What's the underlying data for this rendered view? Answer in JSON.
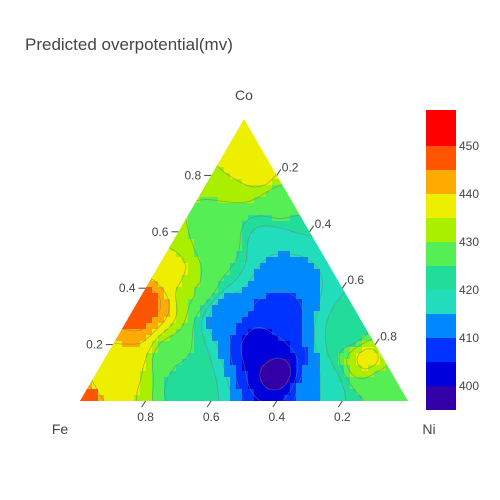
{
  "chart_data": {
    "type": "heatmap",
    "subtype": "ternary-contour",
    "title": "Predicted overpotential(mv)",
    "axes": {
      "top": "Co",
      "left": "Fe",
      "right": "Ni"
    },
    "ticks": {
      "co": [
        "0.2",
        "0.4",
        "0.6",
        "0.8"
      ],
      "ni": [
        "0.2",
        "0.4",
        "0.6",
        "0.8"
      ],
      "fe": [
        "0.2",
        "0.4",
        "0.6",
        "0.8"
      ]
    },
    "tick_values": [
      0.2,
      0.4,
      0.6,
      0.8
    ],
    "colorbar": {
      "tick_labels": [
        "400",
        "410",
        "420",
        "430",
        "440",
        "450"
      ],
      "tick_values": [
        400,
        410,
        420,
        430,
        440,
        450
      ],
      "range": [
        395,
        457.5
      ],
      "levels": [
        {
          "lo": 395,
          "hi": 400,
          "color": "#3300a8"
        },
        {
          "lo": 400,
          "hi": 405,
          "color": "#0000dd"
        },
        {
          "lo": 405,
          "hi": 410,
          "color": "#0033ff"
        },
        {
          "lo": 410,
          "hi": 415,
          "color": "#0088ff"
        },
        {
          "lo": 415,
          "hi": 420,
          "color": "#22ddbb"
        },
        {
          "lo": 420,
          "hi": 425,
          "color": "#22dd9a"
        },
        {
          "lo": 425,
          "hi": 430,
          "color": "#55ee55"
        },
        {
          "lo": 430,
          "hi": 435,
          "color": "#aaee00"
        },
        {
          "lo": 435,
          "hi": 440,
          "color": "#eeee00"
        },
        {
          "lo": 440,
          "hi": 445,
          "color": "#ffaa00"
        },
        {
          "lo": 445,
          "hi": 450,
          "color": "#ff5500"
        },
        {
          "lo": 450,
          "hi": 457.5,
          "color": "#ff0000"
        }
      ]
    },
    "value_peaks": [
      {
        "co": 0.1,
        "ni": 0.55,
        "fe": 0.35,
        "value": 398
      },
      {
        "co": 0.2,
        "ni": 0.45,
        "fe": 0.35,
        "value": 402
      },
      {
        "co": 0.3,
        "ni": 0.45,
        "fe": 0.25,
        "value": 407
      },
      {
        "co": 0.42,
        "ni": 0.4,
        "fe": 0.18,
        "value": 410
      },
      {
        "co": 0.3,
        "ni": 0.3,
        "fe": 0.4,
        "value": 410
      },
      {
        "co": 0.55,
        "ni": 0.3,
        "fe": 0.15,
        "value": 415
      },
      {
        "co": 0.25,
        "ni": 0.7,
        "fe": 0.05,
        "value": 422
      },
      {
        "co": 0.15,
        "ni": 0.8,
        "fe": 0.05,
        "value": 436
      },
      {
        "co": 0.05,
        "ni": 0.9,
        "fe": 0.05,
        "value": 425
      },
      {
        "co": 0.7,
        "ni": 0.25,
        "fe": 0.05,
        "value": 426
      },
      {
        "co": 0.88,
        "ni": 0.1,
        "fe": 0.02,
        "value": 440
      },
      {
        "co": 0.95,
        "ni": 0.03,
        "fe": 0.02,
        "value": 437
      },
      {
        "co": 0.8,
        "ni": 0.15,
        "fe": 0.05,
        "value": 436
      },
      {
        "co": 0.62,
        "ni": 0.08,
        "fe": 0.3,
        "value": 430
      },
      {
        "co": 0.45,
        "ni": 0.05,
        "fe": 0.5,
        "value": 438
      },
      {
        "co": 0.35,
        "ni": 0.03,
        "fe": 0.62,
        "value": 447
      },
      {
        "co": 0.28,
        "ni": 0.02,
        "fe": 0.7,
        "value": 447
      },
      {
        "co": 0.2,
        "ni": 0.05,
        "fe": 0.75,
        "value": 440
      },
      {
        "co": 0.12,
        "ni": 0.08,
        "fe": 0.8,
        "value": 436
      },
      {
        "co": 0.05,
        "ni": 0.05,
        "fe": 0.9,
        "value": 435
      },
      {
        "co": 0.02,
        "ni": 0.02,
        "fe": 0.96,
        "value": 447
      },
      {
        "co": 0.15,
        "ni": 0.2,
        "fe": 0.65,
        "value": 425
      },
      {
        "co": 0.4,
        "ni": 0.15,
        "fe": 0.45,
        "value": 430
      },
      {
        "co": 0.55,
        "ni": 0.15,
        "fe": 0.3,
        "value": 428
      },
      {
        "co": 0.05,
        "ni": 0.3,
        "fe": 0.65,
        "value": 422
      },
      {
        "co": 0.05,
        "ni": 0.7,
        "fe": 0.25,
        "value": 415
      }
    ]
  }
}
